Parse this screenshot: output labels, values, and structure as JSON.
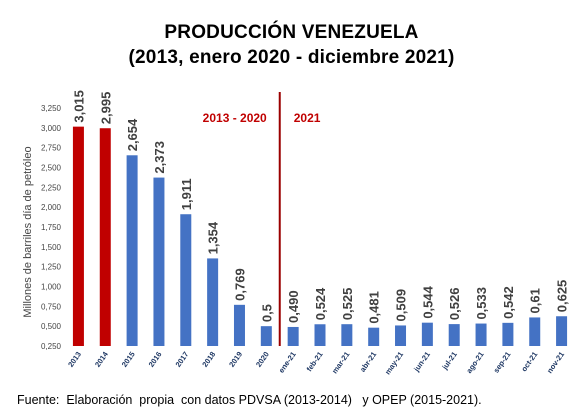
{
  "title": "PRODUCCIÓN  VENEZUELA",
  "subtitle": "(2013, enero 2020 - diciembre 2021)",
  "source": "Fuente:  Elaboración  propia  con datos PDVSA (2013-2014)   y OPEP (2015-2021).",
  "chart_data": {
    "type": "bar",
    "ylabel": "Millones de barriles día de petróleo",
    "xlabel": "",
    "ylim": [
      0.25,
      3.25
    ],
    "yticks": [
      "0,250",
      "0,500",
      "0,750",
      "1,000",
      "1,250",
      "1,500",
      "1,750",
      "2,000",
      "2,250",
      "2,500",
      "2,750",
      "3,000",
      "3,250"
    ],
    "ytick_values": [
      0.25,
      0.5,
      0.75,
      1.0,
      1.25,
      1.5,
      1.75,
      2.0,
      2.25,
      2.5,
      2.75,
      3.0,
      3.25
    ],
    "grid": false,
    "categories": [
      "2013",
      "2014",
      "2015",
      "2016",
      "2017",
      "2018",
      "2019",
      "2020",
      "ene-21",
      "feb-21",
      "mar-21",
      "abr-21",
      "may-21",
      "jun-21",
      "jul-21",
      "ago-21",
      "sep-21",
      "oct-21",
      "nov-21"
    ],
    "values": [
      3.015,
      2.995,
      2.654,
      2.373,
      1.911,
      1.354,
      0.769,
      0.5,
      0.49,
      0.524,
      0.525,
      0.481,
      0.509,
      0.544,
      0.526,
      0.533,
      0.542,
      0.61,
      0.625
    ],
    "data_labels": [
      "3,015",
      "2,995",
      "2,654",
      "2,373",
      "1,911",
      "1,354",
      "0,769",
      "0,5",
      "0,490",
      "0,524",
      "0,525",
      "0,481",
      "0,509",
      "0,544",
      "0,526",
      "0,533",
      "0,542",
      "0,61",
      "0,625"
    ],
    "bar_colors": [
      "#c00000",
      "#c00000",
      "#4472c4",
      "#4472c4",
      "#4472c4",
      "#4472c4",
      "#4472c4",
      "#4472c4",
      "#4472c4",
      "#4472c4",
      "#4472c4",
      "#4472c4",
      "#4472c4",
      "#4472c4",
      "#4472c4",
      "#4472c4",
      "#4472c4",
      "#4472c4",
      "#4472c4"
    ],
    "annotations": [
      {
        "text": "2013 - 2020",
        "color": "#c00000"
      },
      {
        "text": "2021",
        "color": "#c00000"
      }
    ],
    "divider_color": "#9b0000"
  }
}
